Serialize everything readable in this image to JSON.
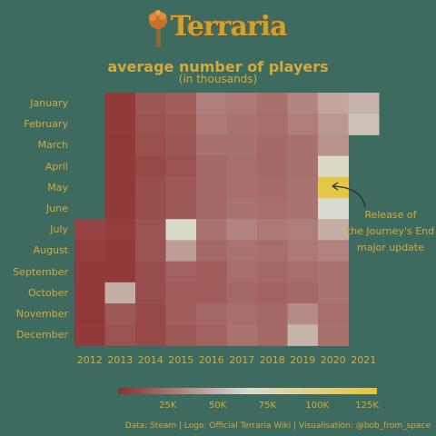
{
  "logo": {
    "text": "Terraria"
  },
  "colors": {
    "background": "#3e6b60",
    "text": "#d3a93a",
    "scale_low": "#8a2e2e",
    "scale_mid": "#d8dbd0",
    "scale_high": "#e6c43a"
  },
  "chart_data": {
    "type": "heatmap",
    "title": "average number of players",
    "subtitle": "(in thousands)",
    "months": [
      "January",
      "February",
      "March",
      "April",
      "May",
      "June",
      "July",
      "August",
      "September",
      "October",
      "November",
      "December"
    ],
    "years": [
      "2012",
      "2013",
      "2014",
      "2015",
      "2016",
      "2017",
      "2018",
      "2019",
      "2020",
      "2021"
    ],
    "values": [
      [
        null,
        5,
        15,
        18,
        30,
        28,
        25,
        33,
        45,
        50
      ],
      [
        null,
        5,
        14,
        16,
        28,
        26,
        24,
        30,
        40,
        55
      ],
      [
        null,
        4,
        13,
        15,
        25,
        25,
        22,
        25,
        38,
        null
      ],
      [
        null,
        4,
        10,
        14,
        22,
        24,
        22,
        25,
        70,
        null
      ],
      [
        null,
        4,
        12,
        16,
        22,
        24,
        23,
        26,
        125,
        null
      ],
      [
        null,
        5,
        12,
        16,
        22,
        26,
        24,
        26,
        65,
        null
      ],
      [
        8,
        6,
        14,
        68,
        26,
        32,
        28,
        30,
        48,
        null
      ],
      [
        6,
        5,
        14,
        42,
        22,
        26,
        24,
        28,
        32,
        null
      ],
      [
        5,
        5,
        12,
        20,
        18,
        24,
        22,
        24,
        26,
        null
      ],
      [
        4,
        48,
        12,
        18,
        18,
        22,
        20,
        22,
        26,
        null
      ],
      [
        4,
        16,
        10,
        18,
        22,
        24,
        22,
        35,
        24,
        null
      ],
      [
        5,
        14,
        10,
        16,
        20,
        26,
        22,
        50,
        25,
        null
      ]
    ],
    "scale": {
      "min": 0,
      "max": 130,
      "ticks": [
        "25K",
        "50K",
        "75K",
        "100K",
        "125K"
      ],
      "tick_values": [
        25,
        50,
        75,
        100,
        125
      ]
    },
    "annotation": {
      "lines": [
        "Release of",
        "the Journey's End",
        "major update"
      ],
      "target_year": "2020",
      "target_month": "May"
    }
  },
  "source": "Data: Steam | Logo: Official Terraria Wiki | Visualisation: @bob_from_space"
}
